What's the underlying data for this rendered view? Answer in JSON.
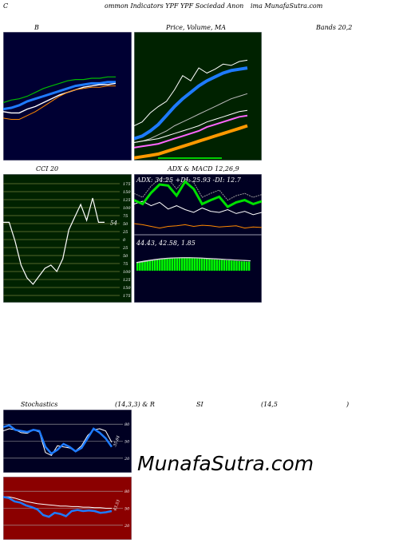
{
  "header": {
    "left": "C",
    "center": "ommon  Indicators YPF YPF Sociedad Anon",
    "right": "ima  MunafaSutra.com"
  },
  "titles": {
    "bollinger": "B",
    "price_volume_ma": "Price,  Volume,  MA",
    "bands": "Bands 20,2",
    "cci": "CCI 20",
    "adx_macd": "ADX  & MACD 12,26,9",
    "stoch": "Stochastics",
    "stoch_params": "(14,3,3) & R",
    "rsi": "SI",
    "rsi_params": "(14,5",
    "rsi_close": ")"
  },
  "watermark": "MunafaSutra.com",
  "colors": {
    "bollinger_bg": "#000033",
    "price_bg": "#002200",
    "cci_bg": "#002200",
    "adx_bg": "#000022",
    "stoch_bg": "#000022",
    "rsi_bg": "#8b0000",
    "accent_blue": "#1e7bff",
    "accent_green": "#00e000",
    "accent_orange": "#ff8800"
  },
  "chart_data": [
    {
      "type": "line",
      "name": "bollinger",
      "series": [
        {
          "values": [
            0.45,
            0.47,
            0.48,
            0.5,
            0.53,
            0.56,
            0.58,
            0.6,
            0.62,
            0.63,
            0.63,
            0.64,
            0.64,
            0.65,
            0.65
          ]
        },
        {
          "values": [
            0.4,
            0.41,
            0.43,
            0.46,
            0.48,
            0.5,
            0.52,
            0.54,
            0.56,
            0.58,
            0.59,
            0.6,
            0.6,
            0.61,
            0.61
          ]
        },
        {
          "values": [
            0.38,
            0.37,
            0.37,
            0.4,
            0.42,
            0.45,
            0.48,
            0.51,
            0.53,
            0.55,
            0.57,
            0.58,
            0.59,
            0.59,
            0.6
          ]
        },
        {
          "values": [
            0.33,
            0.32,
            0.32,
            0.35,
            0.38,
            0.42,
            0.46,
            0.5,
            0.53,
            0.55,
            0.56,
            0.57,
            0.57,
            0.58,
            0.58
          ]
        }
      ]
    },
    {
      "type": "line",
      "name": "price_ma",
      "series": [
        {
          "values": [
            0.27,
            0.3,
            0.37,
            0.42,
            0.46,
            0.55,
            0.66,
            0.62,
            0.72,
            0.68,
            0.71,
            0.75,
            0.74,
            0.77,
            0.78
          ]
        },
        {
          "values": [
            0.17,
            0.19,
            0.23,
            0.28,
            0.35,
            0.42,
            0.48,
            0.53,
            0.58,
            0.62,
            0.65,
            0.68,
            0.7,
            0.71,
            0.72
          ]
        },
        {
          "values": [
            0.14,
            0.15,
            0.17,
            0.2,
            0.23,
            0.27,
            0.3,
            0.33,
            0.36,
            0.39,
            0.42,
            0.45,
            0.48,
            0.5,
            0.52
          ]
        },
        {
          "values": [
            0.1,
            0.11,
            0.12,
            0.13,
            0.15,
            0.17,
            0.19,
            0.21,
            0.23,
            0.26,
            0.28,
            0.3,
            0.32,
            0.34,
            0.35
          ]
        },
        {
          "values": [
            0.02,
            0.03,
            0.04,
            0.05,
            0.07,
            0.09,
            0.11,
            0.13,
            0.15,
            0.17,
            0.19,
            0.21,
            0.23,
            0.25,
            0.27
          ]
        }
      ]
    },
    {
      "type": "line",
      "name": "cci",
      "ylim": [
        -175,
        175
      ],
      "yticks": [
        175,
        150,
        125,
        100,
        75,
        50,
        25,
        0,
        -25,
        -50,
        -75,
        -100,
        -125,
        -150,
        -175
      ],
      "ytick_labels": [
        "175",
        "150",
        "125",
        "100",
        "75",
        "50",
        "25",
        "0",
        "25",
        "50",
        "75",
        "100",
        "125",
        "150",
        "175"
      ],
      "values": [
        54,
        54,
        -5,
        -80,
        -120,
        -140,
        -115,
        -90,
        -80,
        -100,
        -60,
        30,
        70,
        110,
        60,
        130,
        54,
        54
      ],
      "last_label": "54"
    },
    {
      "type": "line",
      "name": "adx",
      "labels": {
        "adx": "ADX: 34.25",
        "plus_di": "+DI: 25.93",
        "minus_di": "-DI: 12.7"
      },
      "series": [
        {
          "values": [
            0.55,
            0.6,
            0.52,
            0.58,
            0.46,
            0.52,
            0.45,
            0.4,
            0.48,
            0.42,
            0.4,
            0.45,
            0.38,
            0.42,
            0.36,
            0.4
          ]
        },
        {
          "values": [
            0.62,
            0.55,
            0.75,
            0.9,
            0.88,
            0.7,
            0.95,
            0.82,
            0.55,
            0.62,
            0.68,
            0.5,
            0.58,
            0.62,
            0.55,
            0.6
          ]
        },
        {
          "values": [
            0.2,
            0.18,
            0.15,
            0.12,
            0.15,
            0.16,
            0.18,
            0.15,
            0.17,
            0.16,
            0.14,
            0.15,
            0.16,
            0.12,
            0.14,
            0.13
          ]
        }
      ]
    },
    {
      "type": "bar",
      "name": "macd",
      "labels": {
        "macd": "44.43",
        "signal": "42.58",
        "histogram": "1.85"
      },
      "values": [
        0.4,
        0.42,
        0.45,
        0.48,
        0.5,
        0.52,
        0.54,
        0.55,
        0.56,
        0.57,
        0.58,
        0.58,
        0.59,
        0.6,
        0.6,
        0.61,
        0.62,
        0.63,
        0.63,
        0.64,
        0.64,
        0.64,
        0.63,
        0.62,
        0.61,
        0.6,
        0.59,
        0.58,
        0.57,
        0.56,
        0.55,
        0.54,
        0.53,
        0.52,
        0.52,
        0.51,
        0.5,
        0.5,
        0.49,
        0.48,
        0.47,
        0.46,
        0.45,
        0.45,
        0.44,
        0.44
      ],
      "series": [
        {
          "values": [
            0.4,
            0.46,
            0.52,
            0.57,
            0.6,
            0.62,
            0.63,
            0.63,
            0.62,
            0.6,
            0.58,
            0.56,
            0.54,
            0.52,
            0.5,
            0.48
          ]
        },
        {
          "values": [
            0.38,
            0.44,
            0.5,
            0.55,
            0.59,
            0.61,
            0.62,
            0.62,
            0.61,
            0.59,
            0.57,
            0.55,
            0.53,
            0.51,
            0.49,
            0.47
          ]
        }
      ]
    },
    {
      "type": "line",
      "name": "stochastics",
      "ylim": [
        0,
        100
      ],
      "yticks": [
        80,
        50,
        20
      ],
      "ytick_labels": [
        "80",
        "50",
        "20"
      ],
      "series": [
        {
          "values": [
            68,
            72,
            70,
            65,
            64,
            70,
            66,
            30,
            25,
            42,
            40,
            38,
            33,
            42,
            60,
            70,
            72,
            68,
            48
          ]
        },
        {
          "values": [
            75,
            78,
            70,
            68,
            66,
            70,
            68,
            40,
            28,
            35,
            45,
            40,
            32,
            38,
            55,
            72,
            65,
            55,
            40
          ]
        }
      ],
      "last_label": "35.84"
    },
    {
      "type": "line",
      "name": "rsi",
      "ylim": [
        0,
        100
      ],
      "yticks": [
        80,
        50,
        20
      ],
      "ytick_labels": [
        "80",
        "50",
        "20"
      ],
      "series": [
        {
          "values": [
            70,
            70,
            68,
            65,
            62,
            60,
            58,
            57,
            56,
            55,
            54,
            54,
            53,
            53,
            52,
            52,
            51,
            51,
            50,
            50
          ]
        },
        {
          "values": [
            70,
            68,
            62,
            60,
            55,
            52,
            48,
            38,
            35,
            42,
            40,
            36,
            45,
            47,
            45,
            46,
            45,
            42,
            43,
            45
          ]
        }
      ],
      "last_label": "43.53"
    }
  ]
}
